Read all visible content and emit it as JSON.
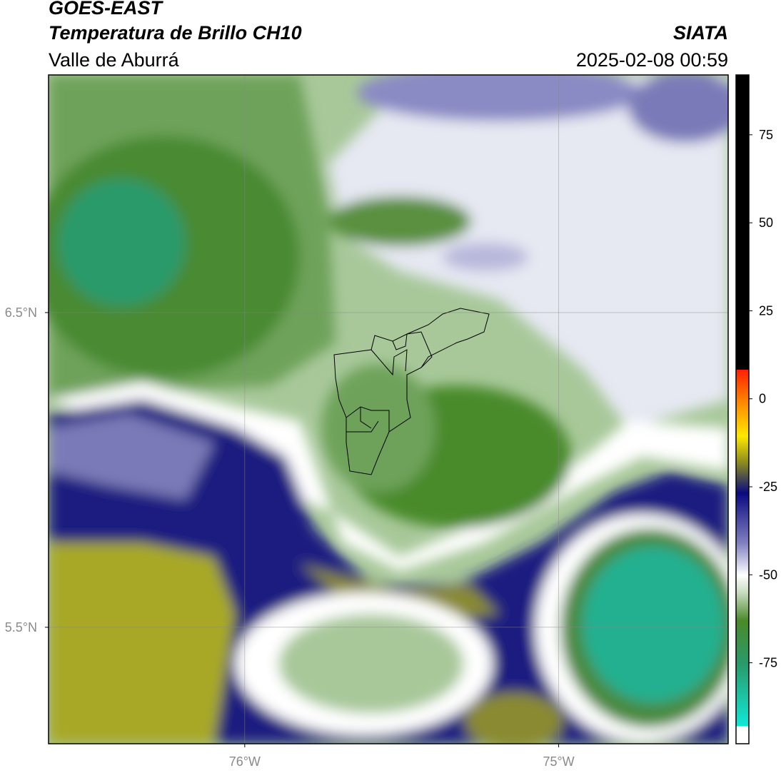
{
  "header": {
    "satellite": "GOES-EAST",
    "product": "Temperatura de Brillo CH10",
    "region": "Valle de Aburrá",
    "agency": "SIATA",
    "timestamp": "2025-02-08 00:59"
  },
  "map": {
    "xlim": [
      -76.625,
      -74.46
    ],
    "ylim": [
      5.13,
      7.255
    ],
    "xticks": [
      {
        "value": -76,
        "label": "76°W"
      },
      {
        "value": -75,
        "label": "75°W"
      }
    ],
    "yticks": [
      {
        "value": 5.5,
        "label": "5.5°N"
      },
      {
        "value": 6.5,
        "label": "6.5°N"
      }
    ],
    "grid": true
  },
  "colorbar": {
    "lim": [
      -98,
      92
    ],
    "ticks": [
      -75,
      -50,
      -25,
      0,
      25,
      50,
      75
    ]
  }
}
